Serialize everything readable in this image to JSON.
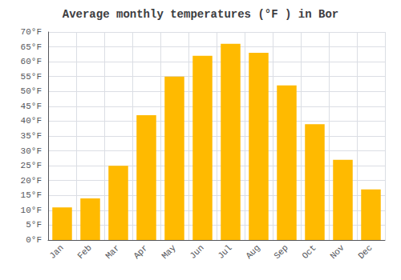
{
  "chart_data": {
    "type": "bar",
    "title": "Average monthly temperatures (°F ) in Bor",
    "categories": [
      "Jan",
      "Feb",
      "Mar",
      "Apr",
      "May",
      "Jun",
      "Jul",
      "Aug",
      "Sep",
      "Oct",
      "Nov",
      "Dec"
    ],
    "values": [
      11,
      14,
      25,
      42,
      55,
      62,
      66,
      63,
      52,
      39,
      27,
      17
    ],
    "color": "#FFBA00",
    "ylim": [
      0,
      70
    ],
    "yticks": [
      {
        "value": 0,
        "label": "0°F"
      },
      {
        "value": 5,
        "label": "5°F"
      },
      {
        "value": 10,
        "label": "10°F"
      },
      {
        "value": 15,
        "label": "15°F"
      },
      {
        "value": 20,
        "label": "20°F"
      },
      {
        "value": 25,
        "label": "25°F"
      },
      {
        "value": 30,
        "label": "30°F"
      },
      {
        "value": 35,
        "label": "35°F"
      },
      {
        "value": 40,
        "label": "40°F"
      },
      {
        "value": 45,
        "label": "45°F"
      },
      {
        "value": 50,
        "label": "50°F"
      },
      {
        "value": 55,
        "label": "55°F"
      },
      {
        "value": 60,
        "label": "60°F"
      },
      {
        "value": 65,
        "label": "65°F"
      },
      {
        "value": 70,
        "label": "70°F"
      }
    ],
    "grid": true
  }
}
